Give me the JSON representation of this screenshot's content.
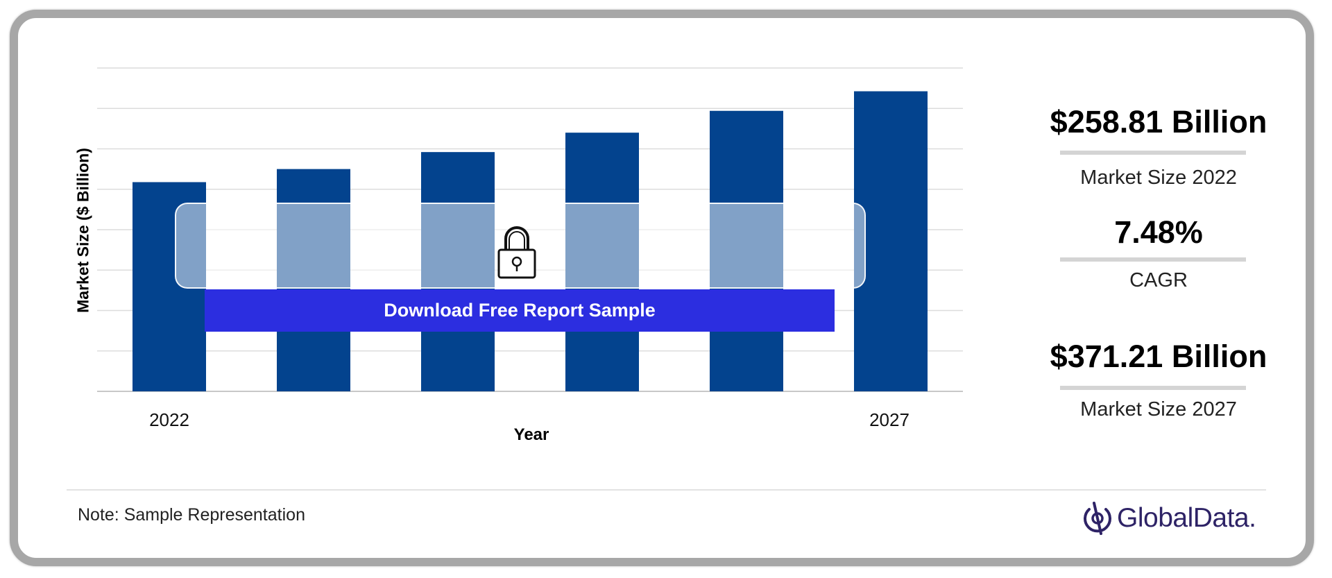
{
  "chart_data": {
    "type": "bar",
    "categories": [
      "2022",
      "",
      "",
      "",
      "",
      "2027"
    ],
    "values": [
      258.81,
      275,
      296,
      320,
      347,
      371.21
    ],
    "xlabel": "Year",
    "ylabel": "Market Size ($ Billion)",
    "ylim": [
      0,
      400
    ],
    "grid": true,
    "bar_color": "#03438e"
  },
  "cta": {
    "label": "Download Free Report Sample",
    "color": "#2c2ee0"
  },
  "kpis": [
    {
      "value": "$258.81 Billion",
      "label": "Market Size 2022"
    },
    {
      "value": "7.48%",
      "label": "CAGR"
    },
    {
      "value": "$371.21 Billion",
      "label": "Market Size 2027"
    }
  ],
  "footer": {
    "note": "Note: Sample Representation",
    "brand": "GlobalData."
  },
  "icons": {
    "lock": "padlock-icon",
    "brand": "globaldata-logo-icon"
  }
}
